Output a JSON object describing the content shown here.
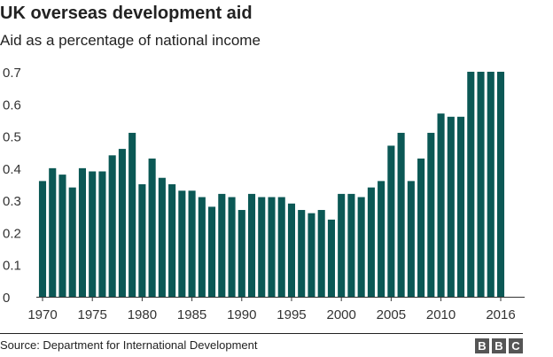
{
  "header": {
    "title": "UK overseas development aid",
    "subtitle": "Aid as a percentage of national income"
  },
  "footer": {
    "source": "Source: Department for International Development",
    "logo_letters": [
      "B",
      "B",
      "C"
    ]
  },
  "colors": {
    "bar": "#0b5855",
    "axis": "#333333",
    "gridline": "#dddddd"
  },
  "chart_data": {
    "type": "bar",
    "title": "UK overseas development aid",
    "subtitle": "Aid as a percentage of national income",
    "xlabel": "",
    "ylabel": "",
    "ylim": [
      0,
      0.7
    ],
    "yticks": [
      0,
      0.1,
      0.2,
      0.3,
      0.4,
      0.5,
      0.6,
      0.7
    ],
    "xtick_labels": [
      "1970",
      "1975",
      "1980",
      "1985",
      "1990",
      "1995",
      "2000",
      "2005",
      "2010",
      "2016"
    ],
    "categories": [
      1970,
      1971,
      1972,
      1973,
      1974,
      1975,
      1976,
      1977,
      1978,
      1979,
      1980,
      1981,
      1982,
      1983,
      1984,
      1985,
      1986,
      1987,
      1988,
      1989,
      1990,
      1991,
      1992,
      1993,
      1994,
      1995,
      1996,
      1997,
      1998,
      1999,
      2000,
      2001,
      2002,
      2003,
      2004,
      2005,
      2006,
      2007,
      2008,
      2009,
      2010,
      2011,
      2012,
      2013,
      2014,
      2015,
      2016
    ],
    "values": [
      0.36,
      0.4,
      0.38,
      0.34,
      0.4,
      0.39,
      0.39,
      0.44,
      0.46,
      0.51,
      0.35,
      0.43,
      0.37,
      0.35,
      0.33,
      0.33,
      0.31,
      0.28,
      0.32,
      0.31,
      0.27,
      0.32,
      0.31,
      0.31,
      0.31,
      0.29,
      0.27,
      0.26,
      0.27,
      0.24,
      0.32,
      0.32,
      0.31,
      0.34,
      0.36,
      0.47,
      0.51,
      0.36,
      0.43,
      0.51,
      0.57,
      0.56,
      0.56,
      0.7,
      0.7,
      0.7,
      0.7
    ],
    "grid": false,
    "legend": "none"
  }
}
